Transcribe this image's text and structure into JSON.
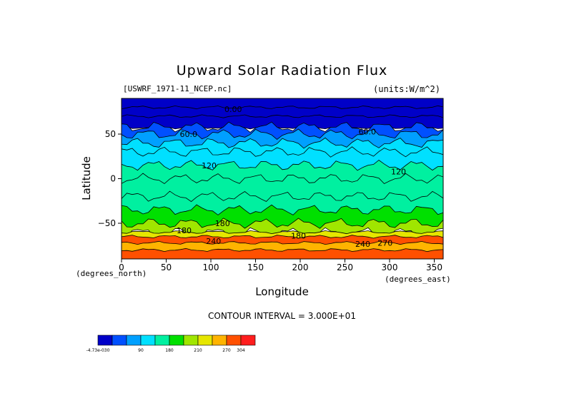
{
  "chart_data": {
    "type": "heatmap",
    "title": "Upward Solar Radiation Flux",
    "file_label": "[USWRF_1971-11_NCEP.nc]",
    "units_label": "(units:W/m^2)",
    "xlabel": "Longitude",
    "ylabel": "Latitude",
    "x_unit_note": "(degrees_east)",
    "y_unit_note": "(degrees_north)",
    "xlim": [
      0,
      360
    ],
    "ylim": [
      -90,
      90
    ],
    "x_ticks": [
      0,
      50,
      100,
      150,
      200,
      250,
      300,
      350
    ],
    "y_ticks": [
      50,
      0,
      -50
    ],
    "contour_interval": "CONTOUR INTERVAL = 3.000E+01",
    "contour_labels": [
      {
        "text": "0.00",
        "lon": 125,
        "lat": 78
      },
      {
        "text": "60.0",
        "lon": 75,
        "lat": 50
      },
      {
        "text": "60.0",
        "lon": 275,
        "lat": 53
      },
      {
        "text": "120",
        "lon": 98,
        "lat": 15
      },
      {
        "text": "120",
        "lon": 310,
        "lat": 8
      },
      {
        "text": "180",
        "lon": 70,
        "lat": -58
      },
      {
        "text": "180",
        "lon": 113,
        "lat": -50
      },
      {
        "text": "180",
        "lon": 198,
        "lat": -64
      },
      {
        "text": "240",
        "lon": 103,
        "lat": -70
      },
      {
        "text": "240",
        "lon": 270,
        "lat": -73
      },
      {
        "text": "270",
        "lon": 295,
        "lat": -72
      }
    ],
    "zonal_bands": [
      {
        "lat_from": 90,
        "lat_to": 80,
        "value": 0
      },
      {
        "lat_from": 80,
        "lat_to": 70,
        "value": 15
      },
      {
        "lat_from": 70,
        "lat_to": 58,
        "value": 15
      },
      {
        "lat_from": 58,
        "lat_to": 50,
        "value": 45
      },
      {
        "lat_from": 50,
        "lat_to": 40,
        "value": 75
      },
      {
        "lat_from": 40,
        "lat_to": 30,
        "value": 105
      },
      {
        "lat_from": 30,
        "lat_to": 15,
        "value": 105
      },
      {
        "lat_from": 15,
        "lat_to": 0,
        "value": 135
      },
      {
        "lat_from": 0,
        "lat_to": -20,
        "value": 135
      },
      {
        "lat_from": -20,
        "lat_to": -35,
        "value": 135
      },
      {
        "lat_from": -35,
        "lat_to": -50,
        "value": 165
      },
      {
        "lat_from": -50,
        "lat_to": -60,
        "value": 195
      },
      {
        "lat_from": -60,
        "lat_to": -65,
        "value": 225
      },
      {
        "lat_from": -65,
        "lat_to": -72,
        "value": 285
      },
      {
        "lat_from": -72,
        "lat_to": -80,
        "value": 255
      },
      {
        "lat_from": -80,
        "lat_to": -90,
        "value": 285
      }
    ],
    "colorbar": {
      "levels": [
        "-4.73e-030",
        "30",
        "60",
        "90",
        "120",
        "150",
        "180",
        "210",
        "240",
        "270",
        "304"
      ],
      "tick_labels": [
        "-4.73e-030",
        "",
        "",
        "90",
        "",
        "180",
        "",
        "210",
        "",
        "270",
        "304"
      ],
      "colors": [
        "#0000c8",
        "#0050ff",
        "#00a0ff",
        "#00e0ff",
        "#00f0a0",
        "#00e000",
        "#a0e600",
        "#e6e600",
        "#ffb400",
        "#ff5000",
        "#ff1e1e"
      ]
    }
  }
}
